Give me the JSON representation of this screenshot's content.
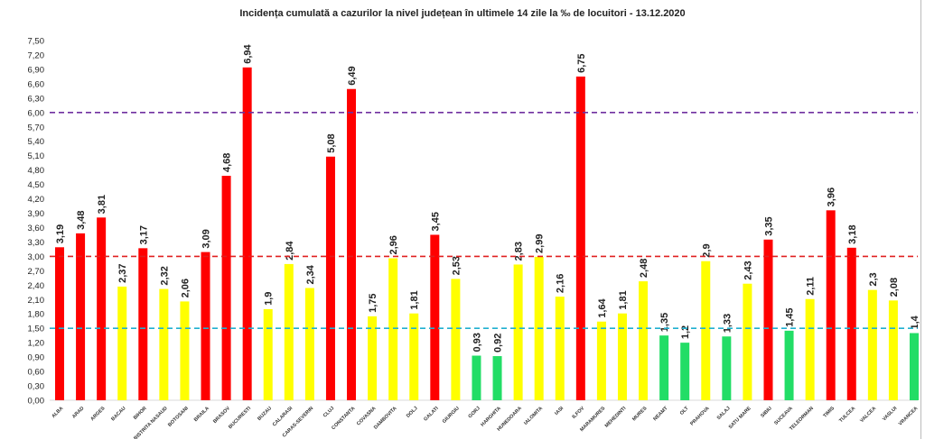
{
  "chart_data": {
    "type": "bar",
    "title": "Incidența cumulată a cazurilor la nivel județean în ultimele 14 zile   la ‰ de locuitori  - 13.12.2020",
    "xlabel": "",
    "ylabel": "",
    "ylim": [
      0,
      7.5
    ],
    "ytick_step": 0.3,
    "grid": false,
    "categories": [
      "ALBA",
      "ARAD",
      "ARGES",
      "BACAU",
      "BIHOR",
      "BISTRITA NASAUD",
      "BOTOSANI",
      "BRAILA",
      "BRASOV",
      "BUCURESTI",
      "BUZAU",
      "CALARASI",
      "CARAS-SEVERIN",
      "CLUJ",
      "CONSTANTA",
      "COVASNA",
      "DAMBOVITA",
      "DOLJ",
      "GALATI",
      "GIURGIU",
      "GORJ",
      "HARGHITA",
      "HUNEDOARA",
      "IALOMITA",
      "IASI",
      "ILFOV",
      "MARAMURES",
      "MEHEDINTI",
      "MURES",
      "NEAMT",
      "OLT",
      "PRAHOVA",
      "SALAJ",
      "SATU MARE",
      "SIBIU",
      "SUCEAVA",
      "TELEORMAN",
      "TIMIS",
      "TULCEA",
      "VALCEA",
      "VASLUI",
      "VRANCEA"
    ],
    "values": [
      3.19,
      3.48,
      3.81,
      2.37,
      3.17,
      2.32,
      2.06,
      3.09,
      4.68,
      6.94,
      1.9,
      2.84,
      2.34,
      5.08,
      6.49,
      1.75,
      2.96,
      1.81,
      3.45,
      2.53,
      0.93,
      0.92,
      2.83,
      2.99,
      2.16,
      6.75,
      1.64,
      1.81,
      2.48,
      1.35,
      1.2,
      2.9,
      1.33,
      2.43,
      3.35,
      1.45,
      2.11,
      3.96,
      3.18,
      2.3,
      2.08,
      1.4
    ],
    "thresholds": [
      {
        "value": 6.0,
        "color": "#7030a0"
      },
      {
        "value": 3.0,
        "color": "#e02020"
      },
      {
        "value": 1.5,
        "color": "#20b0d0"
      }
    ],
    "colors": {
      "high": "#ff0000",
      "medium": "#ffff00",
      "low": "#22dd66"
    }
  }
}
